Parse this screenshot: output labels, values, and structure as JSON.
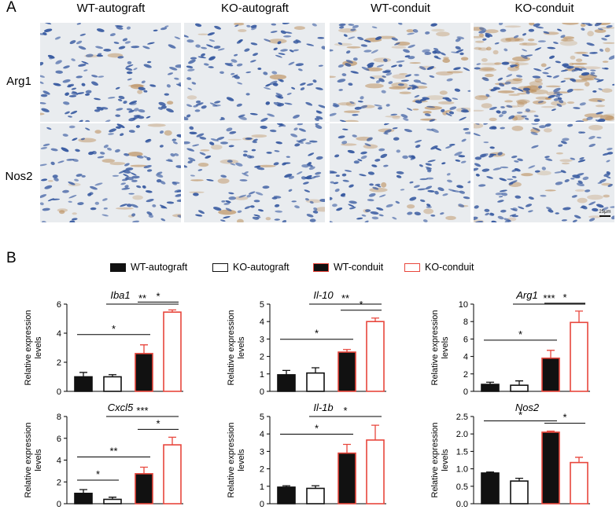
{
  "panel_a": {
    "letter": "A",
    "columns": [
      "WT-autograft",
      "KO-autograft",
      "WT-conduit",
      "KO-conduit"
    ],
    "rows": [
      "Arg1",
      "Nos2"
    ],
    "scale_bar_label": "25μm"
  },
  "panel_b": {
    "letter": "B",
    "legend": [
      {
        "label": "WT-autograft",
        "fill": "#111111",
        "edge": "#111111"
      },
      {
        "label": "KO-autograft",
        "fill": "#ffffff",
        "edge": "#111111"
      },
      {
        "label": "WT-conduit",
        "fill": "#111111",
        "edge": "#e8463c"
      },
      {
        "label": "KO-conduit",
        "fill": "#ffffff",
        "edge": "#e8463c"
      }
    ]
  },
  "colors": {
    "black": "#111111",
    "red": "#e8463c",
    "nucleus": "#33569e",
    "background_stain": "#e9ecef",
    "brown_stain": "#b98a55"
  },
  "chart_data": [
    {
      "type": "bar",
      "title": "Iba1",
      "ylabel": "Relative expression levels",
      "categories": [
        "WT-autograft",
        "KO-autograft",
        "WT-conduit",
        "KO-conduit"
      ],
      "values": [
        1.0,
        1.0,
        2.6,
        5.45
      ],
      "errors": [
        0.3,
        0.15,
        0.6,
        0.15
      ],
      "ylim": [
        0,
        6
      ],
      "yticks": [
        "0",
        "2",
        "4",
        "6"
      ],
      "significance": [
        {
          "from": 0,
          "to": 2,
          "label": "*"
        },
        {
          "from": 1,
          "to": 3,
          "label": "**"
        },
        {
          "from": 2,
          "to": 3,
          "label": "*"
        }
      ]
    },
    {
      "type": "bar",
      "title": "Il-10",
      "ylabel": "Relative expression levels",
      "categories": [
        "WT-autograft",
        "KO-autograft",
        "WT-conduit",
        "KO-conduit"
      ],
      "values": [
        0.95,
        1.05,
        2.25,
        4.0
      ],
      "errors": [
        0.25,
        0.3,
        0.15,
        0.2
      ],
      "ylim": [
        0,
        5
      ],
      "yticks": [
        "0",
        "1",
        "2",
        "3",
        "4",
        "5"
      ],
      "significance": [
        {
          "from": 0,
          "to": 2,
          "label": "*"
        },
        {
          "from": 1,
          "to": 3,
          "label": "**"
        },
        {
          "from": 2,
          "to": 3,
          "label": "*"
        }
      ]
    },
    {
      "type": "bar",
      "title": "Arg1",
      "ylabel": "Relative expression levels",
      "categories": [
        "WT-autograft",
        "KO-autograft",
        "WT-conduit",
        "KO-conduit"
      ],
      "values": [
        0.8,
        0.7,
        3.8,
        7.9
      ],
      "errors": [
        0.25,
        0.5,
        0.9,
        1.3
      ],
      "ylim": [
        0,
        10
      ],
      "yticks": [
        "0",
        "2",
        "4",
        "6",
        "8",
        "10"
      ],
      "significance": [
        {
          "from": 0,
          "to": 2,
          "label": "*"
        },
        {
          "from": 1,
          "to": 3,
          "label": "***"
        },
        {
          "from": 2,
          "to": 3,
          "label": "*"
        }
      ]
    },
    {
      "type": "bar",
      "title": "Cxcl5",
      "ylabel": "Relative expression levels",
      "categories": [
        "WT-autograft",
        "KO-autograft",
        "WT-conduit",
        "KO-conduit"
      ],
      "values": [
        0.95,
        0.4,
        2.75,
        5.4
      ],
      "errors": [
        0.35,
        0.2,
        0.6,
        0.7
      ],
      "ylim": [
        0,
        8
      ],
      "yticks": [
        "0",
        "2",
        "4",
        "6",
        "8"
      ],
      "significance": [
        {
          "from": 0,
          "to": 1,
          "label": "*"
        },
        {
          "from": 0,
          "to": 2,
          "label": "**"
        },
        {
          "from": 1,
          "to": 3,
          "label": "***"
        },
        {
          "from": 2,
          "to": 3,
          "label": "*"
        }
      ]
    },
    {
      "type": "bar",
      "title": "Il-1b",
      "ylabel": "Relative expression levels",
      "categories": [
        "WT-autograft",
        "KO-autograft",
        "WT-conduit",
        "KO-conduit"
      ],
      "values": [
        0.95,
        0.88,
        2.9,
        3.65
      ],
      "errors": [
        0.08,
        0.15,
        0.5,
        0.85
      ],
      "ylim": [
        0,
        5
      ],
      "yticks": [
        "0",
        "1",
        "2",
        "3",
        "4",
        "5"
      ],
      "significance": [
        {
          "from": 0,
          "to": 2,
          "label": "*"
        },
        {
          "from": 1,
          "to": 3,
          "label": "*"
        }
      ]
    },
    {
      "type": "bar",
      "title": "Nos2",
      "ylabel": "Relative expression levels",
      "categories": [
        "WT-autograft",
        "KO-autograft",
        "WT-conduit",
        "KO-conduit"
      ],
      "values": [
        0.88,
        0.65,
        2.05,
        1.18
      ],
      "errors": [
        0.03,
        0.08,
        0.03,
        0.15
      ],
      "ylim": [
        0,
        2.5
      ],
      "yticks": [
        "0.0",
        "0.5",
        "1.0",
        "1.5",
        "2.0",
        "2.5"
      ],
      "significance": [
        {
          "from": 0,
          "to": 2,
          "label": "*"
        },
        {
          "from": 2,
          "to": 3,
          "label": "*"
        }
      ]
    }
  ]
}
